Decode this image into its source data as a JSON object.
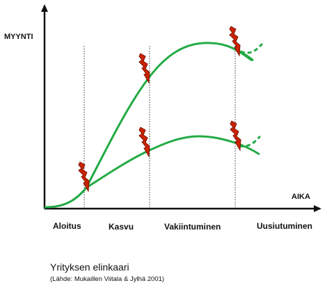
{
  "axes": {
    "y_label": "MYYNTI",
    "x_label": "AIKA"
  },
  "phases": [
    {
      "label": "Aloitus"
    },
    {
      "label": "Kasvu"
    },
    {
      "label": "Vakiintuminen"
    },
    {
      "label": "Uusiutuminen"
    }
  ],
  "caption": {
    "title": "Yrityksen elinkaari",
    "source": "(Lähde: Mukaillen Viitala & Jylhä 2001)"
  },
  "colors": {
    "curve": "#22AA44",
    "axis": "#111111",
    "divider": "#333333",
    "lightning_fill": "#CC2200",
    "lightning_outline": "#7A1500"
  },
  "icons": {
    "crisis_marker": "lightning-bolt-icon"
  }
}
